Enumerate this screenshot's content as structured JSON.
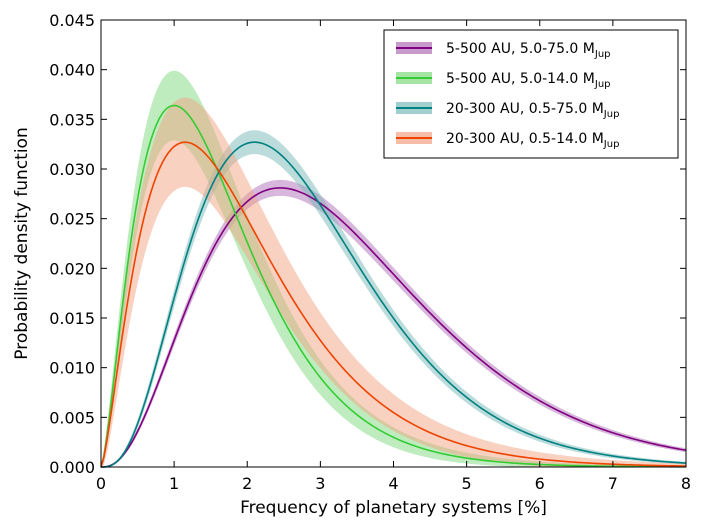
{
  "chart_data": {
    "type": "line",
    "xlabel": "Frequency of planetary systems [%]",
    "ylabel": "Probability density function",
    "xlim": [
      0,
      8
    ],
    "ylim": [
      0,
      0.045
    ],
    "x_ticks": [
      "0",
      "1",
      "2",
      "3",
      "4",
      "5",
      "6",
      "7",
      "8"
    ],
    "y_ticks": [
      "0.000",
      "0.005",
      "0.010",
      "0.015",
      "0.020",
      "0.025",
      "0.030",
      "0.035",
      "0.040",
      "0.045"
    ],
    "grid": false,
    "legend_position": "top-right",
    "series": [
      {
        "name": "5-500 AU, 5.0-75.0 MJup",
        "legend": {
          "main": "5-500 AU, 5.0-75.0 M",
          "sub": "Jup"
        },
        "color": "#800080",
        "band_color": "#b070b8",
        "peak_x": 2.45,
        "peak_y": 0.0281,
        "band_halfwidth": 0.0008,
        "x": [
          0,
          0.5,
          1,
          1.5,
          2,
          2.5,
          3,
          4,
          5,
          6,
          7,
          8
        ],
        "y": [
          0,
          0.0032,
          0.0117,
          0.0204,
          0.0263,
          0.028,
          0.0263,
          0.0182,
          0.0101,
          0.0049,
          0.0021,
          0.0009
        ]
      },
      {
        "name": "5-500 AU, 5.0-14.0 MJup",
        "legend": {
          "main": "5-500 AU, 5.0-14.0 M",
          "sub": "Jup"
        },
        "color": "#33cc33",
        "band_color": "#7fd97f",
        "peak_x": 1.0,
        "peak_y": 0.0364,
        "band_halfwidth": 0.0035,
        "x": [
          0,
          0.5,
          1,
          1.5,
          2,
          2.5,
          3,
          4,
          5,
          6,
          7,
          8
        ],
        "y": [
          0,
          0.0275,
          0.0364,
          0.0333,
          0.0271,
          0.0208,
          0.0154,
          0.0078,
          0.0037,
          0.0016,
          0.0007,
          0.0003
        ]
      },
      {
        "name": "20-300 AU, 0.5-75.0 MJup",
        "legend": {
          "main": "20-300 AU, 0.5-75.0 M",
          "sub": "Jup"
        },
        "color": "#008080",
        "band_color": "#79b9b9",
        "peak_x": 2.1,
        "peak_y": 0.0327,
        "band_halfwidth": 0.0012,
        "x": [
          0,
          0.5,
          1,
          1.5,
          2,
          2.5,
          3,
          4,
          5,
          6,
          7,
          8
        ],
        "y": [
          0,
          0.0056,
          0.0177,
          0.0276,
          0.0325,
          0.0316,
          0.0272,
          0.0159,
          0.0075,
          0.003,
          0.0011,
          0.0004
        ]
      },
      {
        "name": "20-300 AU, 0.5-14.0 MJup",
        "legend": {
          "main": "20-300 AU, 0.5-14.0 M",
          "sub": "Jup"
        },
        "color": "#ee4400",
        "band_color": "#f2a383",
        "peak_x": 1.15,
        "peak_y": 0.0327,
        "band_halfwidth": 0.0045,
        "x": [
          0,
          0.5,
          1,
          1.5,
          2,
          2.5,
          3,
          4,
          5,
          6,
          7,
          8
        ],
        "y": [
          0,
          0.0229,
          0.0326,
          0.0317,
          0.0276,
          0.0226,
          0.0177,
          0.0099,
          0.005,
          0.0024,
          0.0011,
          0.0005
        ]
      }
    ]
  }
}
